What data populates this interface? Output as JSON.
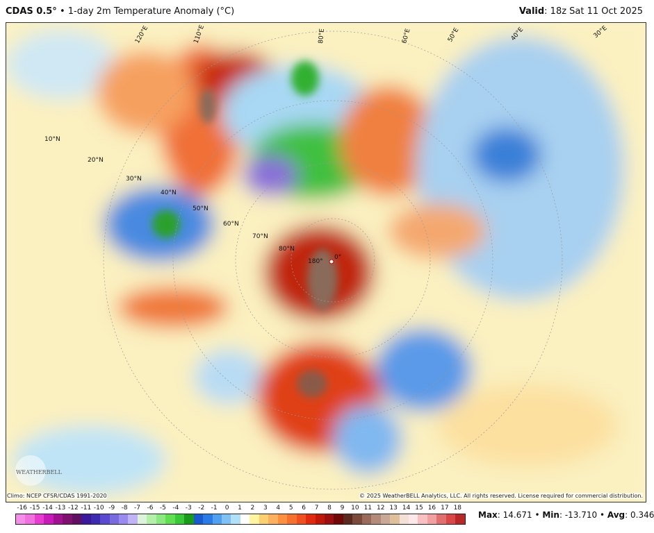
{
  "header": {
    "model": "CDAS 0.5°",
    "separator": "•",
    "title": "1-day 2m Temperature Anomaly (°C)",
    "valid_label": "Valid",
    "valid_value": ": 18z Sat 11 Oct 2025"
  },
  "footer": {
    "climo": "Climo: NCEP CFSR/CDAS 1991-2020",
    "copyright": "© 2025 WeatherBELL Analytics, LLC. All rights reserved. License required for commercial distribution.",
    "logo_text": "WEATHERBELL"
  },
  "stats": {
    "max_label": "Max",
    "max": ": 14.671",
    "min_label": "Min",
    "min": ": -13.710",
    "avg_label": "Avg",
    "avg": ": 0.346",
    "sep": " • "
  },
  "colorbar": {
    "ticks": [
      "-16",
      "-15",
      "-14",
      "-13",
      "-12",
      "-11",
      "-10",
      "-9",
      "-8",
      "-7",
      "-6",
      "-5",
      "-4",
      "-3",
      "-2",
      "-1",
      "0",
      "1",
      "2",
      "3",
      "4",
      "5",
      "6",
      "7",
      "8",
      "9",
      "10",
      "11",
      "12",
      "13",
      "14",
      "15",
      "16",
      "17",
      "18"
    ],
    "colors": [
      "#f58ee8",
      "#f070e0",
      "#e83cd0",
      "#c81ab8",
      "#a01090",
      "#801070",
      "#601060",
      "#3a1a9a",
      "#3c2ab0",
      "#5a4ad0",
      "#7a6ae0",
      "#9a8af0",
      "#c0b4f4",
      "#dcf4dc",
      "#b4f0a8",
      "#8ce880",
      "#60e050",
      "#38c838",
      "#1a9a1a",
      "#1a5ad0",
      "#2a7ae8",
      "#50a0f0",
      "#80c0f4",
      "#b0e0f8",
      "#ffffff",
      "#fff4a0",
      "#fcd070",
      "#fcb060",
      "#fa9040",
      "#f87030",
      "#f05020",
      "#e02a10",
      "#c01808",
      "#9a1010"
    ],
    "colors_hi": [
      "#700808",
      "#5a2a20",
      "#7a4a3a",
      "#9a6a5a",
      "#b48a7a",
      "#caa898",
      "#e0c09a",
      "#f4e0d8",
      "#fce8e8",
      "#f8c0c0",
      "#f0a0a0",
      "#e07070",
      "#d84848",
      "#b82828"
    ]
  },
  "map": {
    "lat_labels": [
      "10°N",
      "20°N",
      "30°N",
      "40°N",
      "50°N",
      "60°N",
      "70°N",
      "80°N"
    ],
    "pole_labels": [
      "180°",
      "0°"
    ],
    "lon_labels": [
      "110°E",
      "120°E",
      "80°E",
      "60°E",
      "50°E",
      "40°E",
      "30°E"
    ]
  }
}
